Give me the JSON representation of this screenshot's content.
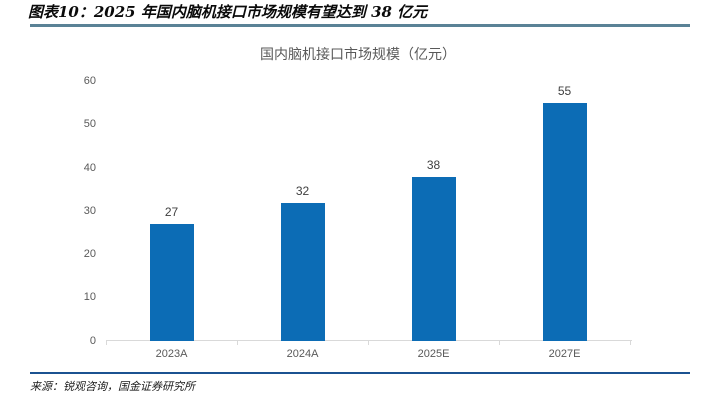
{
  "header": {
    "title": "图表10：2025 年国内脑机接口市场规模有望达到 38 亿元"
  },
  "footer": {
    "source": "来源：锐观咨询，国金证券研究所"
  },
  "colors": {
    "bar": "#0c6cb5",
    "top_rule": "#5a8296",
    "bottom_rule": "#1b5291",
    "axis": "#d9d9d9",
    "axis_label": "#595959",
    "value_label": "#3f3f3f"
  },
  "chart_data": {
    "type": "bar",
    "title": "国内脑机接口市场规模（亿元）",
    "categories": [
      "2023A",
      "2024A",
      "2025E",
      "2027E"
    ],
    "values": [
      27,
      32,
      38,
      55
    ],
    "xlabel": "",
    "ylabel": "",
    "ylim": [
      0,
      60
    ],
    "yticks": [
      0,
      10,
      20,
      30,
      40,
      50,
      60
    ],
    "grid": false,
    "legend": "none",
    "value_labels": true
  }
}
